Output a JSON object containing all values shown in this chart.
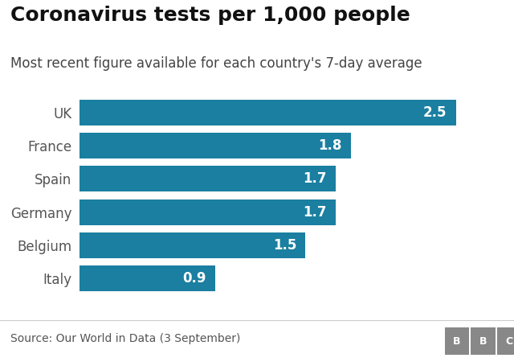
{
  "title": "Coronavirus tests per 1,000 people",
  "subtitle": "Most recent figure available for each country's 7-day average",
  "source": "Source: Our World in Data (3 September)",
  "categories": [
    "Italy",
    "Belgium",
    "Germany",
    "Spain",
    "France",
    "UK"
  ],
  "values": [
    0.9,
    1.5,
    1.7,
    1.7,
    1.8,
    2.5
  ],
  "bar_color": "#1a7fa0",
  "label_color": "#ffffff",
  "title_color": "#111111",
  "subtitle_color": "#444444",
  "source_color": "#555555",
  "background_color": "#ffffff",
  "xlim": [
    0,
    2.8
  ],
  "title_fontsize": 18,
  "subtitle_fontsize": 12,
  "label_fontsize": 12,
  "tick_fontsize": 12,
  "source_fontsize": 10,
  "bar_height": 0.78
}
